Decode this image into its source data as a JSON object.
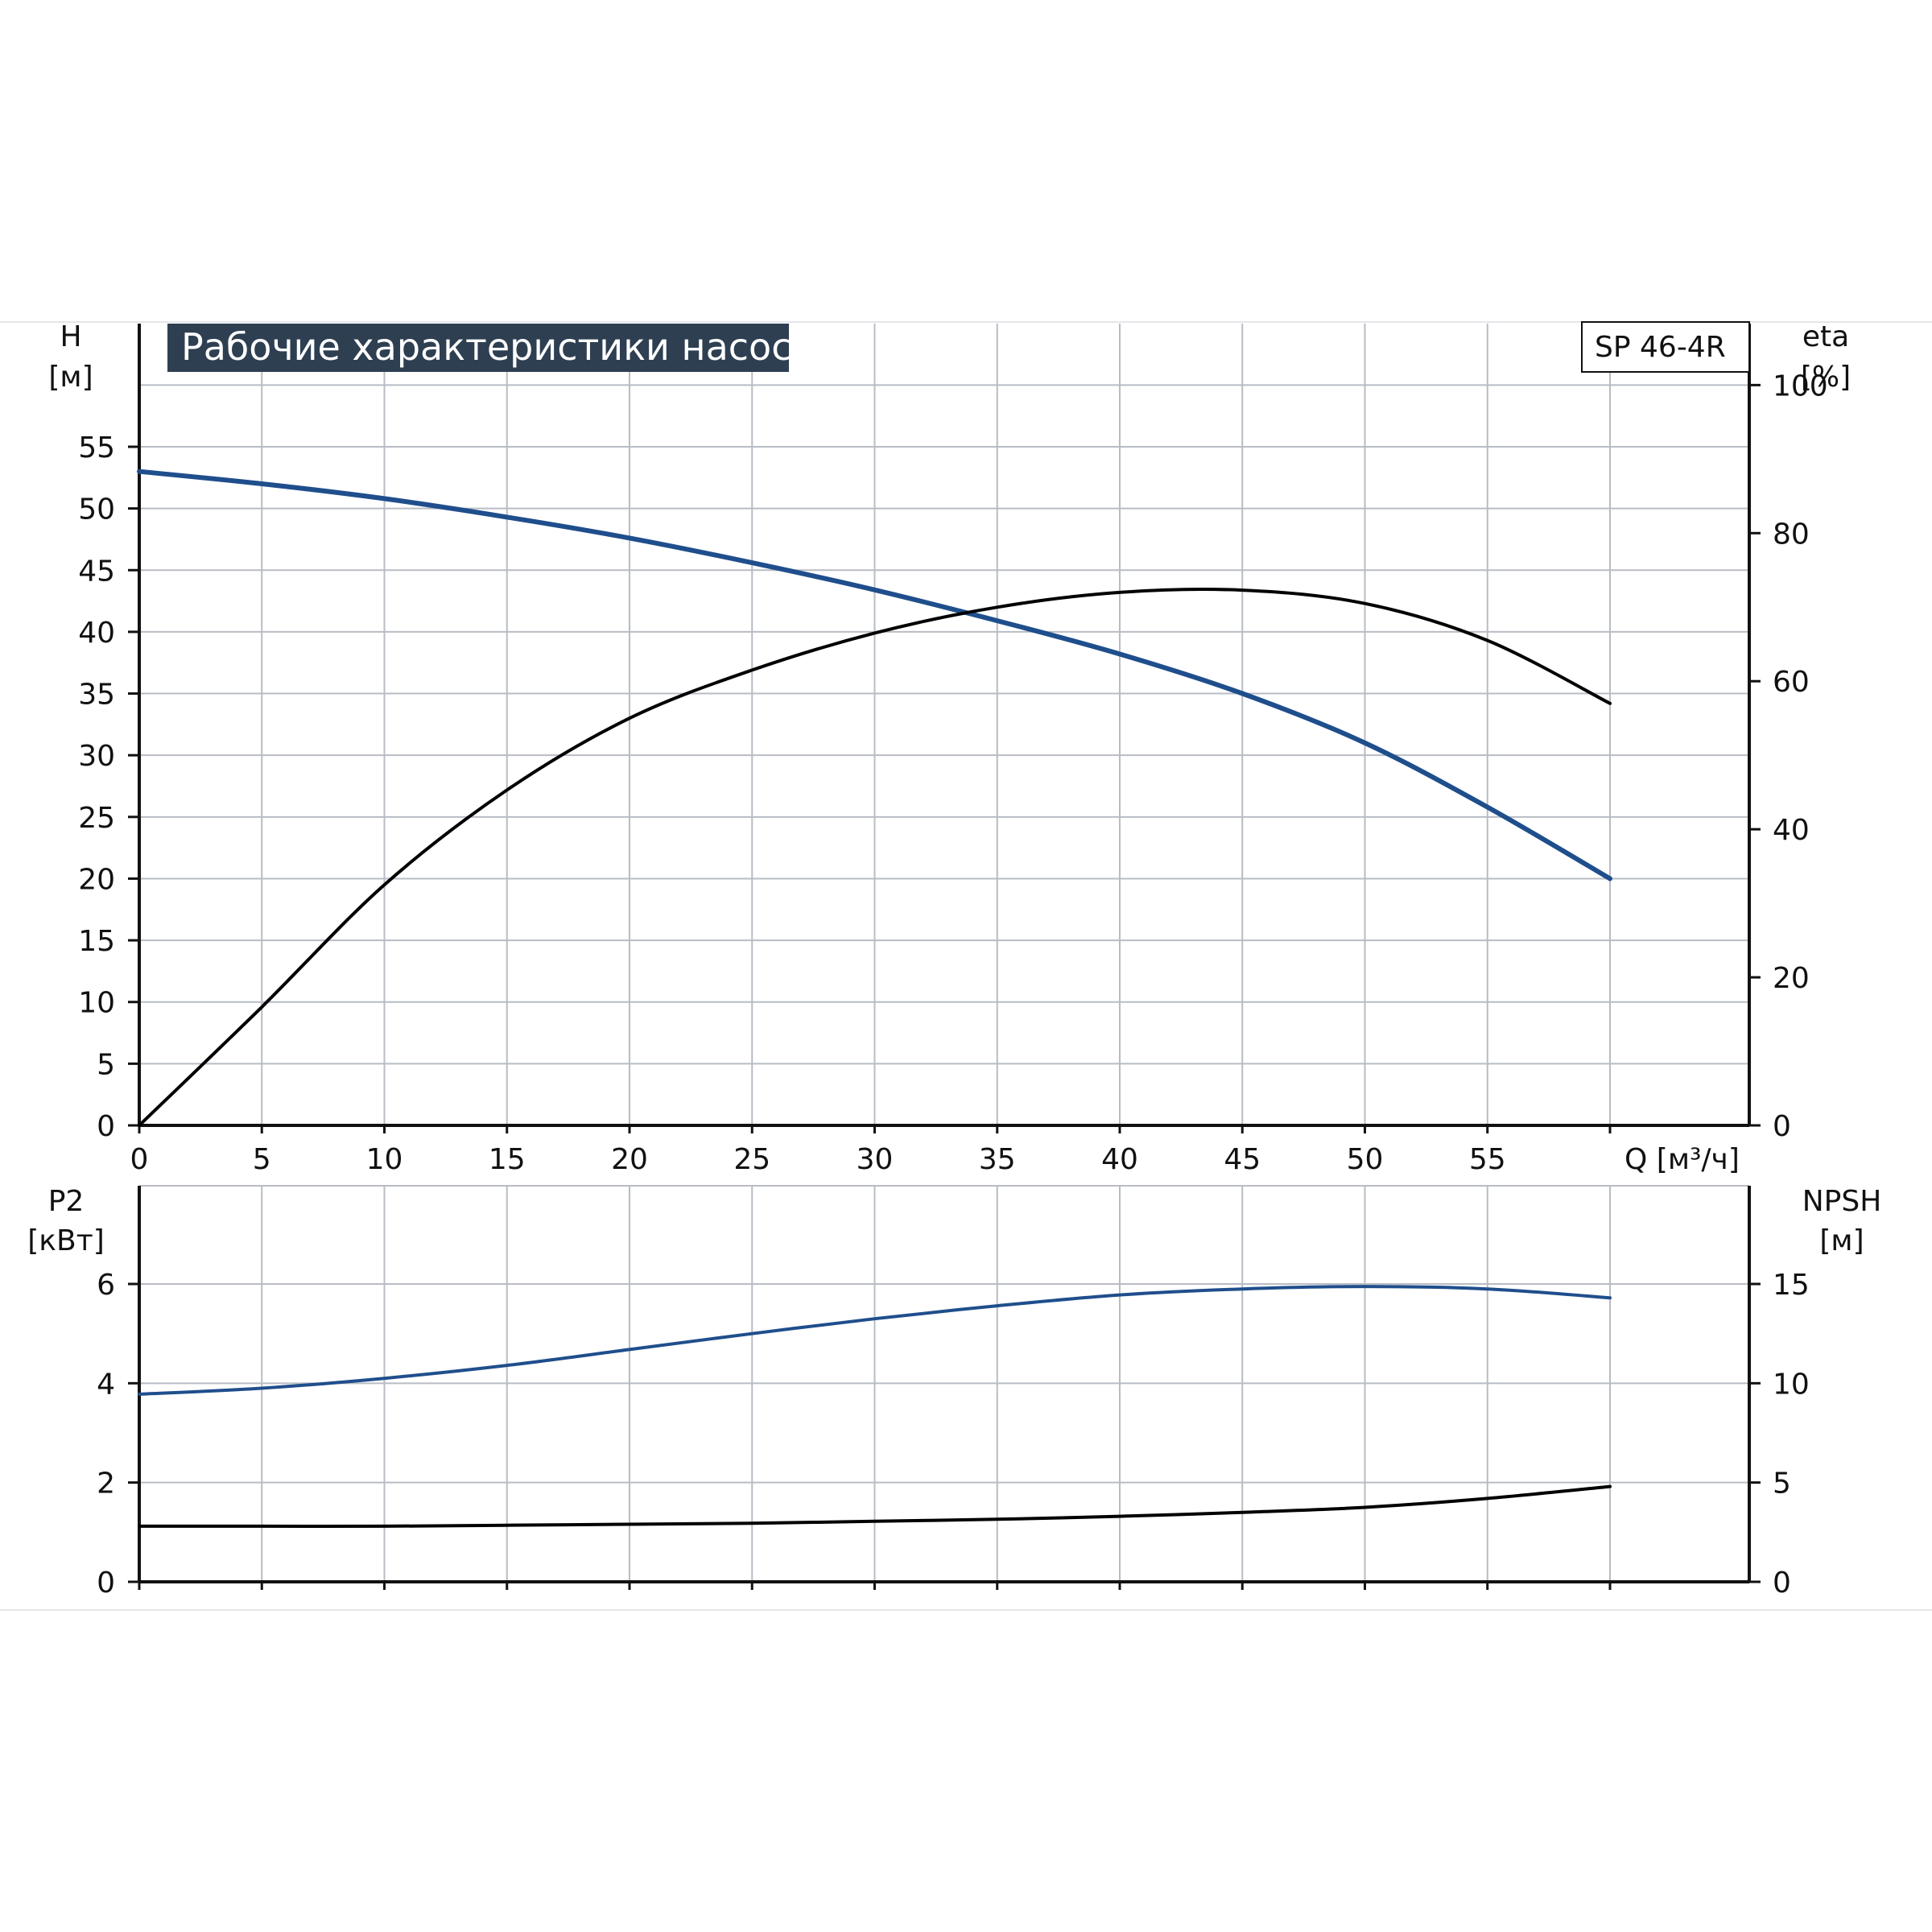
{
  "title": "Рабочие характеристики насоса",
  "model": "SP 46-4R",
  "colors": {
    "blue": "#1f4e8c",
    "black": "#000000",
    "grid": "#b8bcc4",
    "title_bg": "#2e3f52"
  },
  "chart_data": [
    {
      "type": "line",
      "name": "top-panel",
      "xlabel": "Q [м³/ч]",
      "xlim": [
        0,
        60
      ],
      "x_ticks": [
        0,
        5,
        10,
        15,
        20,
        25,
        30,
        35,
        40,
        45,
        50,
        55
      ],
      "y_left": {
        "label_line1": "H",
        "label_line2": "[м]",
        "ylim": [
          0,
          60
        ],
        "ticks": [
          0,
          5,
          10,
          15,
          20,
          25,
          30,
          35,
          40,
          45,
          50,
          55
        ]
      },
      "y_right": {
        "label_line1": "eta",
        "label_line2": "[%]",
        "ylim": [
          0,
          100
        ],
        "ticks": [
          0,
          20,
          40,
          60,
          80,
          100
        ]
      },
      "grid": true,
      "series": [
        {
          "axis": "left",
          "color": "#1f4e8c",
          "x": [
            0,
            5,
            10,
            15,
            20,
            25,
            30,
            35,
            40,
            45,
            50,
            55,
            60
          ],
          "y": [
            53,
            52,
            50.8,
            49.3,
            47.6,
            45.6,
            43.4,
            40.9,
            38.2,
            35,
            31,
            25.8,
            20
          ]
        },
        {
          "axis": "right",
          "color": "#000000",
          "x": [
            0,
            5,
            10,
            15,
            20,
            25,
            30,
            35,
            40,
            45,
            50,
            55,
            60
          ],
          "y": [
            0,
            16,
            32.5,
            45.3,
            55,
            61.5,
            66.5,
            70,
            72,
            72.3,
            70.5,
            65.5,
            57
          ]
        }
      ]
    },
    {
      "type": "line",
      "name": "bottom-panel",
      "xlim": [
        0,
        60
      ],
      "y_left": {
        "label_line1": "P2",
        "label_line2": "[кВт]",
        "ylim": [
          0,
          8
        ],
        "ticks": [
          0,
          2,
          4,
          6
        ]
      },
      "y_right": {
        "label_line1": "NPSH",
        "label_line2": "[м]",
        "ylim": [
          0,
          20
        ],
        "ticks": [
          0,
          5,
          10,
          15
        ]
      },
      "grid": true,
      "series": [
        {
          "axis": "left",
          "color": "#1f4e8c",
          "x": [
            0,
            5,
            10,
            15,
            20,
            25,
            30,
            35,
            40,
            45,
            50,
            55,
            60
          ],
          "y": [
            3.78,
            3.9,
            4.1,
            4.36,
            4.68,
            5.0,
            5.3,
            5.56,
            5.78,
            5.9,
            5.95,
            5.9,
            5.72
          ]
        },
        {
          "axis": "right",
          "color": "#000000",
          "x": [
            0,
            5,
            10,
            15,
            20,
            25,
            30,
            35,
            40,
            45,
            50,
            55,
            60
          ],
          "y": [
            2.8,
            2.8,
            2.8,
            2.85,
            2.9,
            2.95,
            3.05,
            3.15,
            3.3,
            3.5,
            3.75,
            4.2,
            4.8
          ]
        }
      ]
    }
  ]
}
